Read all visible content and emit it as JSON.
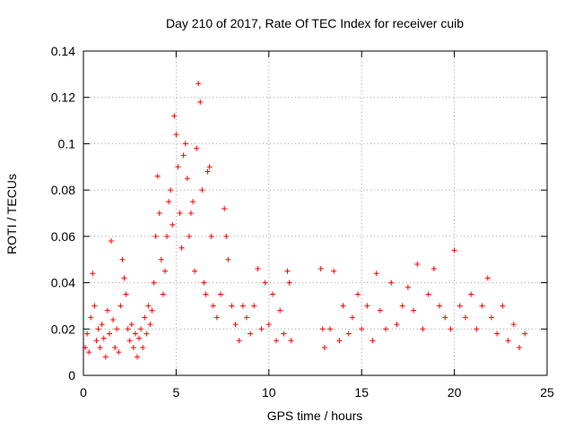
{
  "chart_data": {
    "type": "scatter",
    "title": "Day 210 of 2017, Rate Of TEC Index for receiver cuib",
    "xlabel": "GPS time / hours",
    "ylabel": "ROTI / TECUs",
    "xlim": [
      0,
      25
    ],
    "ylim": [
      0,
      0.14
    ],
    "xticks": [
      "0",
      "5",
      "10",
      "15",
      "20",
      "25"
    ],
    "yticks": [
      "0",
      "0.02",
      "0.04",
      "0.06",
      "0.08",
      "0.1",
      "0.12",
      "0.14"
    ],
    "grid": true,
    "marker": "+",
    "marker_color": "#ff0000",
    "series": [
      {
        "points": [
          [
            0.1,
            0.012
          ],
          [
            0.2,
            0.018
          ],
          [
            0.3,
            0.01
          ],
          [
            0.4,
            0.025
          ],
          [
            0.5,
            0.044
          ],
          [
            0.6,
            0.03
          ],
          [
            0.7,
            0.015
          ],
          [
            0.8,
            0.02
          ],
          [
            0.9,
            0.012
          ],
          [
            1.0,
            0.022
          ],
          [
            1.1,
            0.016
          ],
          [
            1.2,
            0.008
          ],
          [
            1.3,
            0.028
          ],
          [
            1.4,
            0.018
          ],
          [
            1.5,
            0.058
          ],
          [
            1.6,
            0.024
          ],
          [
            1.7,
            0.012
          ],
          [
            1.8,
            0.02
          ],
          [
            1.9,
            0.01
          ],
          [
            2.0,
            0.03
          ],
          [
            2.1,
            0.05
          ],
          [
            2.2,
            0.042
          ],
          [
            2.3,
            0.035
          ],
          [
            2.4,
            0.02
          ],
          [
            2.5,
            0.015
          ],
          [
            2.6,
            0.022
          ],
          [
            2.7,
            0.012
          ],
          [
            2.8,
            0.018
          ],
          [
            2.9,
            0.008
          ],
          [
            3.0,
            0.016
          ],
          [
            3.1,
            0.02
          ],
          [
            3.2,
            0.012
          ],
          [
            3.3,
            0.025
          ],
          [
            3.4,
            0.018
          ],
          [
            3.5,
            0.03
          ],
          [
            3.6,
            0.022
          ],
          [
            3.7,
            0.028
          ],
          [
            3.8,
            0.04
          ],
          [
            3.9,
            0.06
          ],
          [
            4.0,
            0.086
          ],
          [
            4.1,
            0.07
          ],
          [
            4.2,
            0.05
          ],
          [
            4.3,
            0.035
          ],
          [
            4.4,
            0.045
          ],
          [
            4.5,
            0.06
          ],
          [
            4.6,
            0.075
          ],
          [
            4.7,
            0.08
          ],
          [
            4.8,
            0.065
          ],
          [
            4.9,
            0.112
          ],
          [
            5.0,
            0.104
          ],
          [
            5.1,
            0.09
          ],
          [
            5.2,
            0.07
          ],
          [
            5.3,
            0.055
          ],
          [
            5.4,
            0.095
          ],
          [
            5.5,
            0.1
          ],
          [
            5.6,
            0.085
          ],
          [
            5.7,
            0.06
          ],
          [
            5.8,
            0.07
          ],
          [
            5.9,
            0.075
          ],
          [
            6.0,
            0.045
          ],
          [
            6.1,
            0.098
          ],
          [
            6.2,
            0.126
          ],
          [
            6.3,
            0.118
          ],
          [
            6.4,
            0.08
          ],
          [
            6.5,
            0.04
          ],
          [
            6.6,
            0.035
          ],
          [
            6.7,
            0.088
          ],
          [
            6.8,
            0.09
          ],
          [
            6.9,
            0.06
          ],
          [
            7.0,
            0.03
          ],
          [
            7.2,
            0.025
          ],
          [
            7.4,
            0.035
          ],
          [
            7.6,
            0.072
          ],
          [
            7.7,
            0.06
          ],
          [
            7.8,
            0.05
          ],
          [
            8.0,
            0.03
          ],
          [
            8.2,
            0.022
          ],
          [
            8.4,
            0.015
          ],
          [
            8.6,
            0.03
          ],
          [
            8.8,
            0.025
          ],
          [
            9.0,
            0.018
          ],
          [
            9.2,
            0.03
          ],
          [
            9.4,
            0.046
          ],
          [
            9.6,
            0.02
          ],
          [
            9.8,
            0.04
          ],
          [
            10.0,
            0.022
          ],
          [
            10.2,
            0.035
          ],
          [
            10.4,
            0.015
          ],
          [
            10.6,
            0.028
          ],
          [
            10.8,
            0.018
          ],
          [
            11.0,
            0.045
          ],
          [
            11.1,
            0.04
          ],
          [
            11.2,
            0.015
          ],
          [
            12.8,
            0.046
          ],
          [
            12.9,
            0.02
          ],
          [
            13.0,
            0.012
          ],
          [
            13.3,
            0.02
          ],
          [
            13.5,
            0.045
          ],
          [
            13.8,
            0.015
          ],
          [
            14.0,
            0.03
          ],
          [
            14.3,
            0.018
          ],
          [
            14.5,
            0.025
          ],
          [
            14.8,
            0.035
          ],
          [
            15.0,
            0.02
          ],
          [
            15.3,
            0.03
          ],
          [
            15.6,
            0.015
          ],
          [
            15.8,
            0.044
          ],
          [
            16.0,
            0.028
          ],
          [
            16.3,
            0.02
          ],
          [
            16.6,
            0.04
          ],
          [
            16.9,
            0.022
          ],
          [
            17.2,
            0.03
          ],
          [
            17.5,
            0.038
          ],
          [
            17.8,
            0.028
          ],
          [
            18.0,
            0.048
          ],
          [
            18.3,
            0.02
          ],
          [
            18.6,
            0.035
          ],
          [
            18.9,
            0.046
          ],
          [
            19.2,
            0.03
          ],
          [
            19.5,
            0.025
          ],
          [
            19.8,
            0.02
          ],
          [
            20.0,
            0.054
          ],
          [
            20.3,
            0.03
          ],
          [
            20.6,
            0.025
          ],
          [
            20.9,
            0.035
          ],
          [
            21.2,
            0.02
          ],
          [
            21.5,
            0.03
          ],
          [
            21.8,
            0.042
          ],
          [
            22.0,
            0.025
          ],
          [
            22.3,
            0.018
          ],
          [
            22.6,
            0.03
          ],
          [
            22.9,
            0.015
          ],
          [
            23.2,
            0.022
          ],
          [
            23.5,
            0.012
          ],
          [
            23.8,
            0.018
          ]
        ]
      }
    ]
  }
}
